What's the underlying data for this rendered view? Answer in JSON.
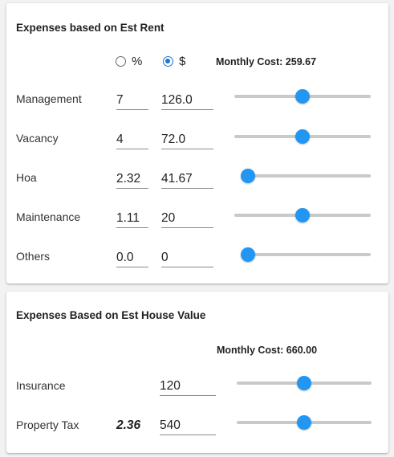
{
  "rent_card": {
    "title": "Expenses based on Est Rent",
    "mode_options": {
      "percent_label": "%",
      "dollar_label": "$",
      "selected": "dollar"
    },
    "monthly_cost_label": "Monthly Cost: 259.67",
    "rows": [
      {
        "label": "Management",
        "percent": "7",
        "amount": "126.0",
        "slider_fraction": 0.5
      },
      {
        "label": "Vacancy",
        "percent": "4",
        "amount": "72.0",
        "slider_fraction": 0.5
      },
      {
        "label": "Hoa",
        "percent": "2.32",
        "amount": "41.67",
        "slider_fraction": 0.0
      },
      {
        "label": "Maintenance",
        "percent": "1.11",
        "amount": "20",
        "slider_fraction": 0.5
      },
      {
        "label": "Others",
        "percent": "0.0",
        "amount": "0",
        "slider_fraction": 0.0
      }
    ]
  },
  "house_card": {
    "title": "Expenses Based on Est House Value",
    "monthly_cost_label": "Monthly Cost: 660.00",
    "rows": [
      {
        "label": "Insurance",
        "rate": "",
        "amount": "120",
        "slider_fraction": 0.5
      },
      {
        "label": "Property Tax",
        "rate": "2.36",
        "amount": "540",
        "slider_fraction": 0.5
      }
    ]
  },
  "colors": {
    "accent": "#2196f3",
    "track": "#c9c9c9"
  }
}
